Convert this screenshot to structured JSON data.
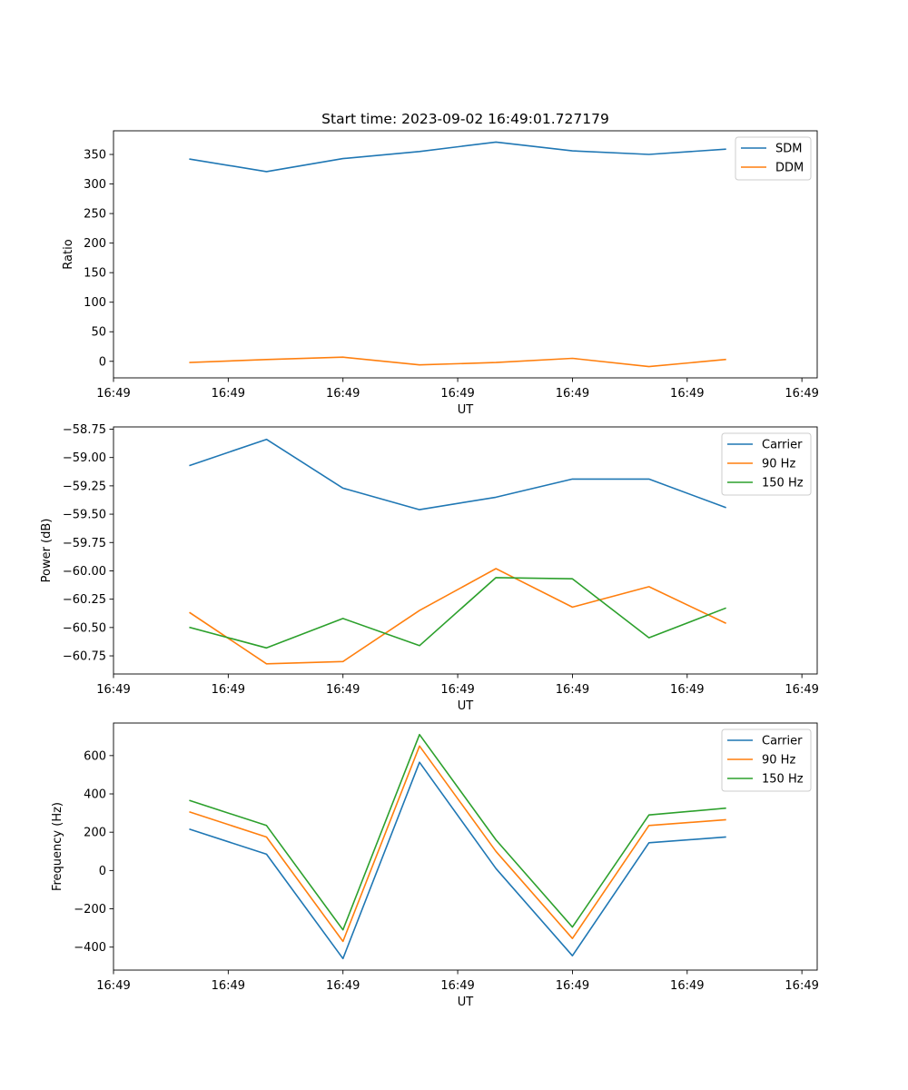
{
  "figure_title": "Start time: 2023-09-02 16:49:01.727179",
  "chart_data": [
    {
      "type": "line",
      "title": "Start time: 2023-09-02 16:49:01.727179",
      "xlabel": "UT",
      "ylabel": "Ratio",
      "x_index": [
        1,
        2,
        3,
        4,
        5,
        6,
        7,
        8
      ],
      "xlim": [
        0,
        9.2
      ],
      "x_ticks": [
        0,
        1.5,
        3,
        4.5,
        6,
        7.5,
        9
      ],
      "x_tick_labels": [
        "16:49",
        "16:49",
        "16:49",
        "16:49",
        "16:49",
        "16:49",
        "16:49"
      ],
      "ylim": [
        -28,
        390
      ],
      "y_ticks": [
        0,
        50,
        100,
        150,
        200,
        250,
        300,
        350
      ],
      "y_tick_labels": [
        "0",
        "50",
        "100",
        "150",
        "200",
        "250",
        "300",
        "350"
      ],
      "legend_location": "top-right",
      "series": [
        {
          "name": "SDM",
          "color": "#1f77b4",
          "values": [
            342,
            321,
            343,
            355,
            371,
            356,
            350,
            359
          ]
        },
        {
          "name": "DDM",
          "color": "#ff7f0e",
          "values": [
            -2,
            3,
            7,
            -6,
            -2,
            5,
            -9,
            3
          ]
        }
      ]
    },
    {
      "type": "line",
      "title": "",
      "xlabel": "UT",
      "ylabel": "Power (dB)",
      "x_index": [
        1,
        2,
        3,
        4,
        5,
        6,
        7,
        8
      ],
      "xlim": [
        0,
        9.2
      ],
      "x_ticks": [
        0,
        1.5,
        3,
        4.5,
        6,
        7.5,
        9
      ],
      "x_tick_labels": [
        "16:49",
        "16:49",
        "16:49",
        "16:49",
        "16:49",
        "16:49",
        "16:49"
      ],
      "ylim": [
        -60.91,
        -58.73
      ],
      "y_ticks": [
        -58.75,
        -59.0,
        -59.25,
        -59.5,
        -59.75,
        -60.0,
        -60.25,
        -60.5,
        -60.75
      ],
      "y_tick_labels": [
        "−58.75",
        "−59.00",
        "−59.25",
        "−59.50",
        "−59.75",
        "−60.00",
        "−60.25",
        "−60.50",
        "−60.75"
      ],
      "legend_location": "top-right",
      "series": [
        {
          "name": "Carrier",
          "color": "#1f77b4",
          "values": [
            -59.07,
            -58.84,
            -59.27,
            -59.46,
            -59.35,
            -59.19,
            -59.19,
            -59.44
          ]
        },
        {
          "name": "90 Hz",
          "color": "#ff7f0e",
          "values": [
            -60.37,
            -60.82,
            -60.8,
            -60.35,
            -59.98,
            -60.32,
            -60.14,
            -60.46
          ]
        },
        {
          "name": "150 Hz",
          "color": "#2ca02c",
          "values": [
            -60.5,
            -60.68,
            -60.42,
            -60.66,
            -60.06,
            -60.07,
            -60.59,
            -60.33
          ]
        }
      ]
    },
    {
      "type": "line",
      "title": "",
      "xlabel": "UT",
      "ylabel": "Frequency (Hz)",
      "x_index": [
        1,
        2,
        3,
        4,
        5,
        6,
        7,
        8
      ],
      "xlim": [
        0,
        9.2
      ],
      "x_ticks": [
        0,
        1.5,
        3,
        4.5,
        6,
        7.5,
        9
      ],
      "x_tick_labels": [
        "16:49",
        "16:49",
        "16:49",
        "16:49",
        "16:49",
        "16:49",
        "16:49"
      ],
      "ylim": [
        -520,
        770
      ],
      "y_ticks": [
        -400,
        -200,
        0,
        200,
        400,
        600
      ],
      "y_tick_labels": [
        "−400",
        "−200",
        "0",
        "200",
        "400",
        "600"
      ],
      "legend_location": "top-right",
      "series": [
        {
          "name": "Carrier",
          "color": "#1f77b4",
          "values": [
            215,
            85,
            -460,
            565,
            10,
            -445,
            145,
            175
          ]
        },
        {
          "name": "90 Hz",
          "color": "#ff7f0e",
          "values": [
            305,
            175,
            -370,
            650,
            100,
            -355,
            235,
            265
          ]
        },
        {
          "name": "150 Hz",
          "color": "#2ca02c",
          "values": [
            365,
            235,
            -310,
            710,
            160,
            -295,
            290,
            325
          ]
        }
      ]
    }
  ]
}
